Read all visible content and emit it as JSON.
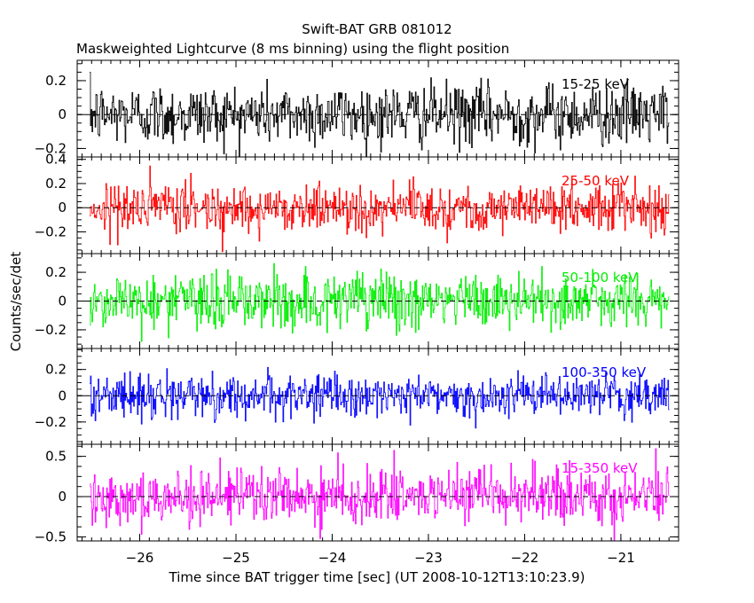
{
  "chart_data": {
    "type": "line",
    "title": "Swift-BAT GRB 081012",
    "subtitle": "Maskweighted Lightcurve (8 ms binning) using the flight position",
    "xlabel": "Time since BAT trigger time [sec] (UT 2008-10-12T13:10:23.9)",
    "ylabel": "Counts/sec/det",
    "xlim": [
      -26.65,
      -20.4
    ],
    "x_ticks": [
      -26,
      -25,
      -24,
      -23,
      -22,
      -21
    ],
    "x_tick_labels": [
      "−26",
      "−25",
      "−24",
      "−23",
      "−22",
      "−21"
    ],
    "x_range_data": [
      -26.52,
      -20.5
    ],
    "bin_width_sec": 0.008,
    "panels": [
      {
        "label": "15-25 keV",
        "color": "#000000",
        "ylim": [
          -0.25,
          0.32
        ],
        "y_ticks": [
          -0.2,
          0,
          0.2
        ],
        "y_tick_labels": [
          "−0.2",
          "0",
          "0.2"
        ],
        "noise_sigma": 0.09
      },
      {
        "label": "25-50 keV",
        "color": "#ff0000",
        "ylim": [
          -0.38,
          0.42
        ],
        "y_ticks": [
          -0.2,
          0,
          0.2,
          0.4
        ],
        "y_tick_labels": [
          "−0.2",
          "0",
          "0.2",
          "0.4"
        ],
        "noise_sigma": 0.1
      },
      {
        "label": "50-100 keV",
        "color": "#00ee00",
        "ylim": [
          -0.33,
          0.33
        ],
        "y_ticks": [
          -0.2,
          0,
          0.2
        ],
        "y_tick_labels": [
          "−0.2",
          "0",
          "0.2"
        ],
        "noise_sigma": 0.1
      },
      {
        "label": "100-350 keV",
        "color": "#0000ff",
        "ylim": [
          -0.37,
          0.36
        ],
        "y_ticks": [
          -0.2,
          0,
          0.2
        ],
        "y_tick_labels": [
          "−0.2",
          "0",
          "0.2"
        ],
        "noise_sigma": 0.08
      },
      {
        "label": "15-350 keV",
        "color": "#ff00ff",
        "ylim": [
          -0.55,
          0.65
        ],
        "y_ticks": [
          -0.5,
          0,
          0.5
        ],
        "y_tick_labels": [
          "−0.5",
          "0",
          "0.5"
        ],
        "noise_sigma": 0.17
      }
    ]
  }
}
